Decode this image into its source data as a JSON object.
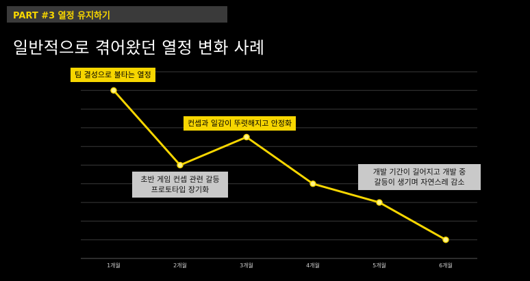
{
  "header": {
    "label": "PART #3 열정 유지하기"
  },
  "title": "일반적으로 겪어왔던 열정 변화 사례",
  "colors": {
    "accent": "#f7d600",
    "background": "#000000",
    "grid": "#3a3a3a",
    "callout_gray": "#c9c9c9"
  },
  "chart_data": {
    "type": "line",
    "categories": [
      "1개월",
      "2개월",
      "3개월",
      "4개월",
      "5개월",
      "6개월"
    ],
    "values": [
      9,
      5,
      6.5,
      4,
      3,
      1
    ],
    "title": "",
    "xlabel": "",
    "ylabel": "",
    "ylim": [
      0,
      10
    ],
    "grid": true,
    "annotations": [
      {
        "text": "팀 결성으로 불타는 열정",
        "point": 0
      },
      {
        "text": "초반 게임 컨셉 관련 갈등\n프로토타입 장기화",
        "point": 1
      },
      {
        "text": "컨셉과 일감이 뚜렷해지고 안정화",
        "point": 2
      },
      {
        "text": "개발 기간이 길어지고 개발 중\n갈등이 생기며 자연스레 감소",
        "point": 4
      }
    ]
  }
}
